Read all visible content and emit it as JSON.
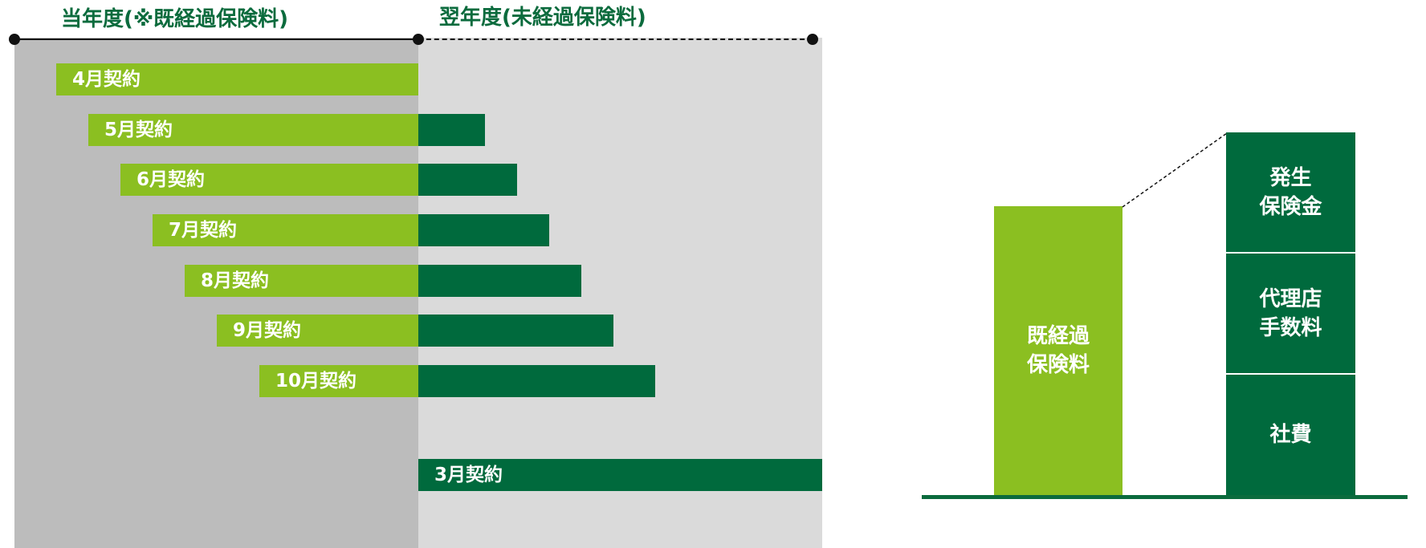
{
  "timeline": {
    "current_year_label": "当年度(※既経過保険料)",
    "next_year_label": "翌年度(未経過保険料)"
  },
  "contracts": [
    {
      "label": "4月契約"
    },
    {
      "label": "5月契約"
    },
    {
      "label": "6月契約"
    },
    {
      "label": "7月契約"
    },
    {
      "label": "8月契約"
    },
    {
      "label": "9月契約"
    },
    {
      "label": "10月契約"
    },
    {
      "label": "3月契約"
    }
  ],
  "breakdown": {
    "earned_premium": "既経過\n保険料",
    "claims": "発生\n保険金",
    "agency_commission": "代理店\n手数料",
    "company_expenses": "社費"
  },
  "colors": {
    "light_green": "#8bbf21",
    "dark_green": "#006a3d",
    "panel_current": "#bcbcbc",
    "panel_next": "#dadada"
  }
}
